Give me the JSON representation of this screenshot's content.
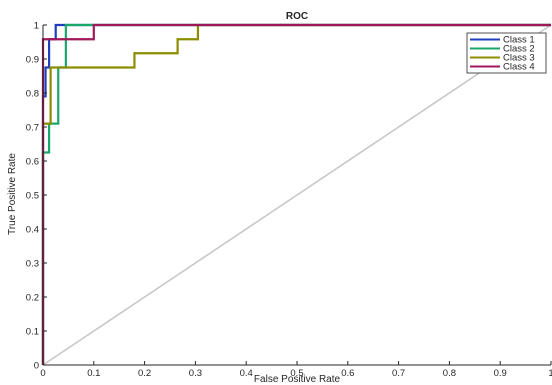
{
  "chart_data": {
    "type": "line",
    "title": "ROC",
    "xlabel": "False Positive Rate",
    "ylabel": "True Positive Rate",
    "xlim": [
      0,
      1
    ],
    "ylim": [
      0,
      1
    ],
    "xticks": [
      0,
      0.1,
      0.2,
      0.3,
      0.4,
      0.5,
      0.6,
      0.7,
      0.8,
      0.9,
      1
    ],
    "xtick_labels": [
      "0",
      "0.1",
      "0.2",
      "0.3",
      "0.4",
      "0.5",
      "0.6",
      "0.7",
      "0.8",
      "0.9",
      "1"
    ],
    "yticks": [
      0,
      0.1,
      0.2,
      0.3,
      0.4,
      0.5,
      0.6,
      0.7,
      0.8,
      0.9,
      1
    ],
    "ytick_labels": [
      "0",
      "0.1",
      "0.2",
      "0.3",
      "0.4",
      "0.5",
      "0.6",
      "0.7",
      "0.8",
      "0.9",
      "1"
    ],
    "grid": false,
    "legend_position": "top-right",
    "diagonal": {
      "x": [
        0,
        1
      ],
      "y": [
        0,
        1
      ],
      "color": "#c8c8c8"
    },
    "series": [
      {
        "name": "Class 1",
        "color": "#1f3fbf",
        "x": [
          0,
          0,
          0.005,
          0.005,
          0.012,
          0.012,
          0.025,
          0.025,
          1
        ],
        "y": [
          0,
          0.79,
          0.79,
          0.875,
          0.875,
          0.958,
          0.958,
          1,
          1
        ]
      },
      {
        "name": "Class 2",
        "color": "#1aa86a",
        "x": [
          0,
          0,
          0.012,
          0.012,
          0.03,
          0.03,
          0.045,
          0.045,
          1
        ],
        "y": [
          0,
          0.625,
          0.625,
          0.71,
          0.71,
          0.875,
          0.875,
          1,
          1
        ]
      },
      {
        "name": "Class 3",
        "color": "#8c8c00",
        "x": [
          0,
          0,
          0.015,
          0.015,
          0.18,
          0.18,
          0.265,
          0.265,
          0.305,
          0.305,
          1
        ],
        "y": [
          0,
          0.71,
          0.71,
          0.875,
          0.875,
          0.917,
          0.917,
          0.958,
          0.958,
          1,
          1
        ]
      },
      {
        "name": "Class 4",
        "color": "#a0185a",
        "x": [
          0,
          0,
          0.1,
          0.1,
          1
        ],
        "y": [
          0,
          0.958,
          0.958,
          1,
          1
        ]
      }
    ]
  }
}
